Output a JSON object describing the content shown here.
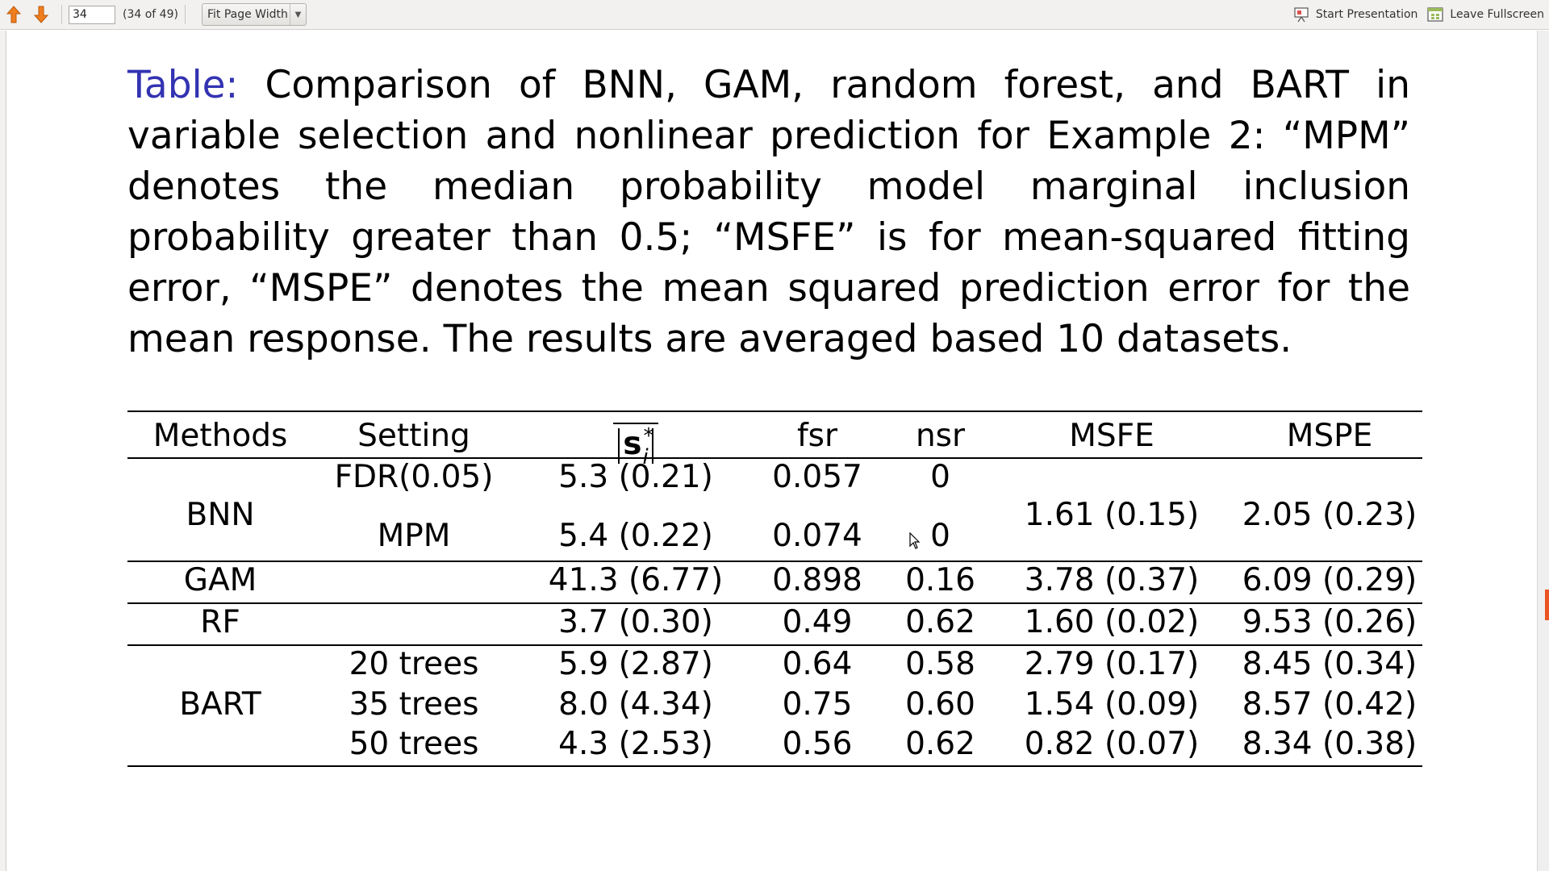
{
  "toolbar": {
    "page_number": "34",
    "page_count": "(34 of 49)",
    "zoom": "Fit Page Width",
    "start_presentation": "Start Presentation",
    "leave_fullscreen": "Leave Fullscreen"
  },
  "caption": {
    "label": "Table:",
    "text": "Comparison of BNN, GAM, random forest, and BART in variable selection and nonlinear prediction for Example 2: “MPM” denotes the median probability model marginal inclusion probability greater than 0.5; “MSFE” is for mean-squared fitting error, “MSPE” denotes the mean squared prediction error for the mean response. The results are averaged based 10 datasets."
  },
  "table": {
    "headers": {
      "methods": "Methods",
      "setting": "Setting",
      "s_main": "s",
      "s_sup": "*",
      "s_sub": "i",
      "fsr": "fsr",
      "nsr": "nsr",
      "msfe": "MSFE",
      "mspe": "MSPE"
    },
    "bnn": {
      "method": "BNN",
      "rows": [
        {
          "setting": "FDR(0.05)",
          "s": "5.3 (0.21)",
          "fsr": "0.057",
          "nsr": "0"
        },
        {
          "setting": "MPM",
          "s": "5.4 (0.22)",
          "fsr": "0.074",
          "nsr": "0"
        }
      ],
      "msfe": "1.61 (0.15)",
      "mspe": "2.05 (0.23)"
    },
    "gam": {
      "method": "GAM",
      "s": "41.3 (6.77)",
      "fsr": "0.898",
      "nsr": "0.16",
      "msfe": "3.78 (0.37)",
      "mspe": "6.09 (0.29)"
    },
    "rf": {
      "method": "RF",
      "s": "3.7 (0.30)",
      "fsr": "0.49",
      "nsr": "0.62",
      "msfe": "1.60 (0.02)",
      "mspe": "9.53 (0.26)"
    },
    "bart": {
      "method": "BART",
      "rows": [
        {
          "setting": "20 trees",
          "s": "5.9 (2.87)",
          "fsr": "0.64",
          "nsr": "0.58",
          "msfe": "2.79 (0.17)",
          "mspe": "8.45 (0.34)"
        },
        {
          "setting": "35 trees",
          "s": "8.0 (4.34)",
          "fsr": "0.75",
          "nsr": "0.60",
          "msfe": "1.54 (0.09)",
          "mspe": "8.57 (0.42)"
        },
        {
          "setting": "50 trees",
          "s": "4.3 (2.53)",
          "fsr": "0.56",
          "nsr": "0.62",
          "msfe": "0.82 (0.07)",
          "mspe": "8.34 (0.38)"
        }
      ]
    }
  }
}
